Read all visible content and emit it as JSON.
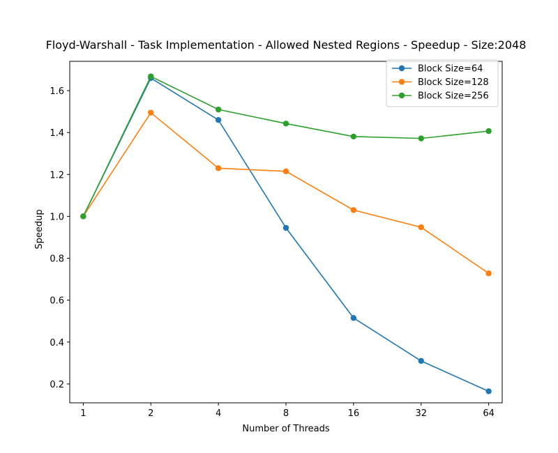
{
  "chart_data": {
    "type": "line",
    "title": "Floyd-Warshall - Task Implementation - Allowed Nested Regions - Speedup - Size:2048",
    "xlabel": "Number of Threads",
    "ylabel": "Speedup",
    "x_tick_labels": [
      "1",
      "2",
      "4",
      "8",
      "16",
      "32",
      "64"
    ],
    "x_scale": "log2",
    "y_ticks": [
      0.2,
      0.4,
      0.6,
      0.8,
      1.0,
      1.2,
      1.4,
      1.6
    ],
    "y_tick_labels": [
      "0.2",
      "0.4",
      "0.6",
      "0.8",
      "1.0",
      "1.2",
      "1.4",
      "1.6"
    ],
    "ylim": [
      0.11,
      1.74
    ],
    "grid": false,
    "legend_position": "top-right",
    "series": [
      {
        "name": "Block Size=64",
        "color": "#1f77b4",
        "x": [
          1,
          2,
          4,
          8,
          16,
          32,
          64
        ],
        "values": [
          1.0,
          1.66,
          1.46,
          0.945,
          0.515,
          0.31,
          0.165
        ]
      },
      {
        "name": "Block Size=128",
        "color": "#ff7f0e",
        "x": [
          1,
          2,
          4,
          8,
          16,
          32,
          64
        ],
        "values": [
          1.0,
          1.495,
          1.23,
          1.215,
          1.03,
          0.948,
          0.728
        ]
      },
      {
        "name": "Block Size=256",
        "color": "#2ca02c",
        "x": [
          1,
          2,
          4,
          8,
          16,
          32,
          64
        ],
        "values": [
          1.0,
          1.668,
          1.51,
          1.443,
          1.381,
          1.372,
          1.407
        ]
      }
    ]
  }
}
